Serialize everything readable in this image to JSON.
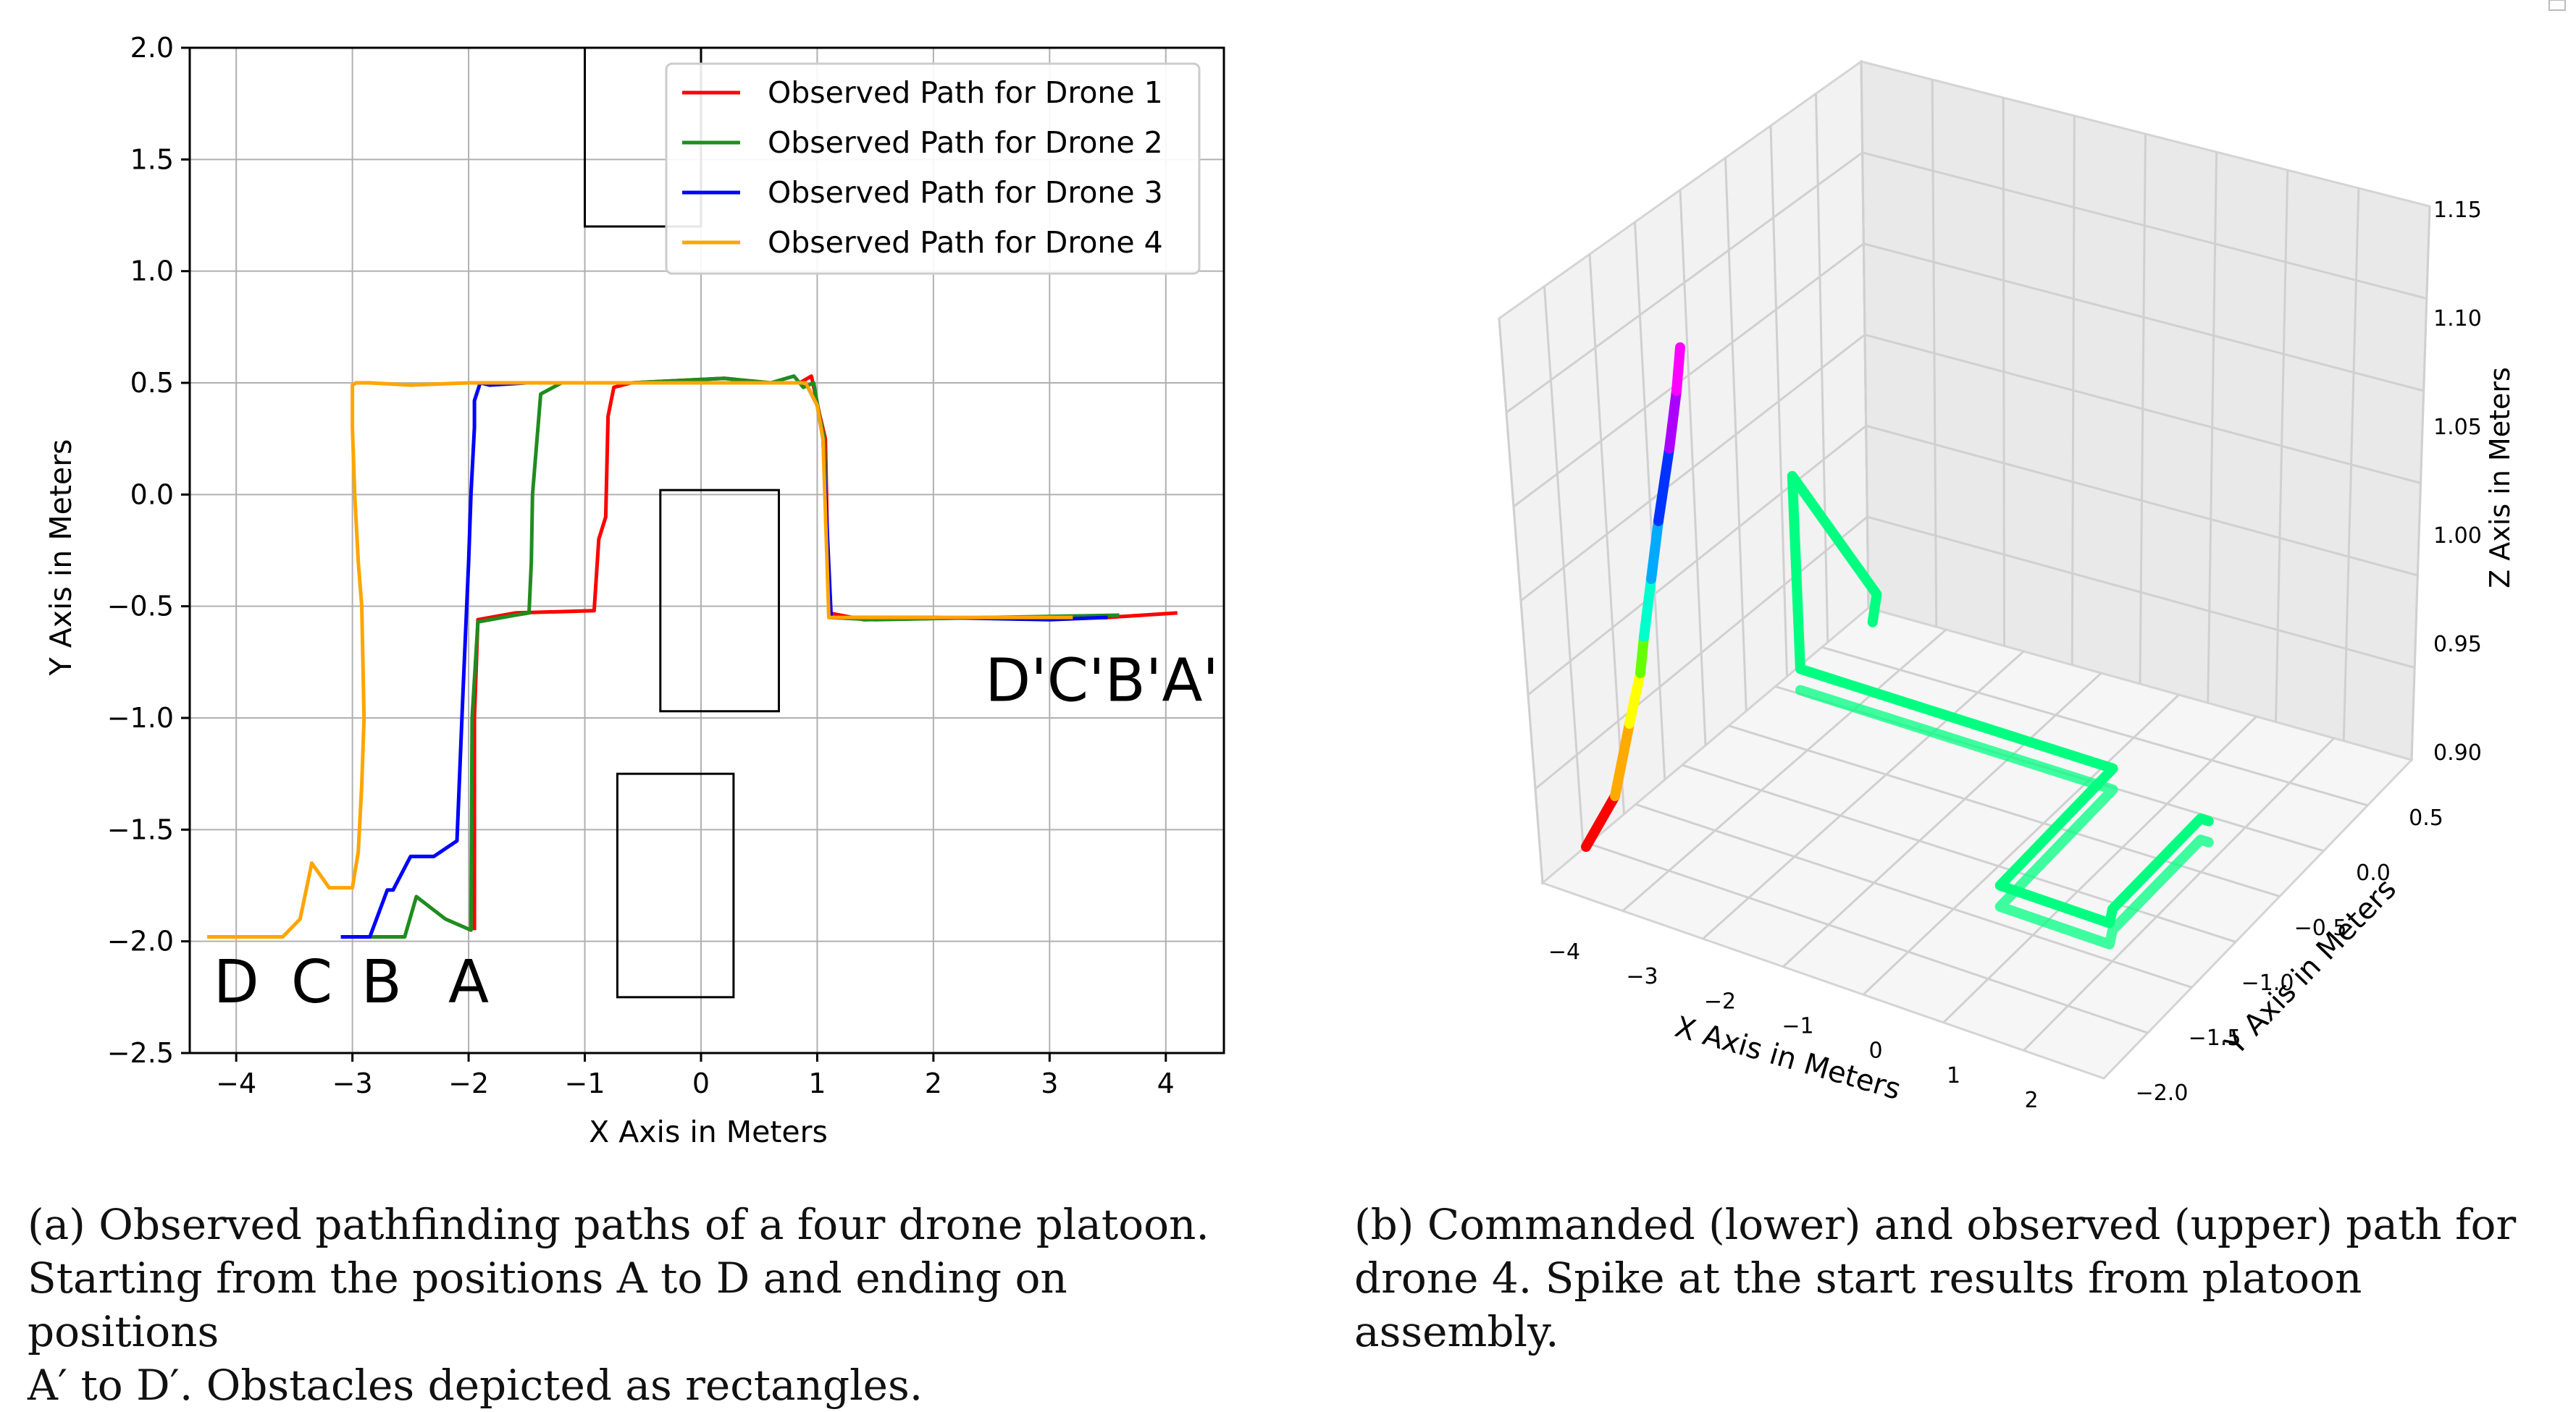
{
  "figure_a": {
    "caption": [
      "(a)  Observed pathfinding paths of a four drone platoon.",
      "Starting from the positions A to D and ending on positions",
      "A′ to D′. Obstacles depicted as rectangles."
    ],
    "chart_data": {
      "type": "line",
      "xlabel": "X Axis in Meters",
      "ylabel": "Y Axis in Meters",
      "xlim": [
        -4.4,
        4.5
      ],
      "ylim": [
        -2.5,
        2.0
      ],
      "xticks": [
        -4,
        -3,
        -2,
        -1,
        0,
        1,
        2,
        3,
        4
      ],
      "yticks": [
        2.0,
        1.5,
        1.0,
        0.5,
        0.0,
        -0.5,
        -1.0,
        -1.5,
        -2.0,
        -2.5
      ],
      "xtick_labels": [
        "−4",
        "−3",
        "−2",
        "−1",
        "0",
        "1",
        "2",
        "3",
        "4"
      ],
      "ytick_labels": [
        "2.0",
        "1.5",
        "1.0",
        "0.5",
        "0.0",
        "−0.5",
        "−1.0",
        "−1.5",
        "−2.0",
        "−2.5"
      ],
      "grid": true,
      "legend_position": "top-right",
      "series": [
        {
          "name": "Observed Path for Drone 1",
          "color": "#ff0000",
          "x": [
            -1.95,
            -1.95,
            -1.92,
            -1.6,
            -0.92,
            -0.88,
            -0.82,
            -0.8,
            -0.75,
            -0.6,
            -0.2,
            0.2,
            0.6,
            0.85,
            0.95,
            1.02,
            1.07,
            1.1,
            1.4,
            2.5,
            3.5,
            4.1
          ],
          "y": [
            -1.95,
            -1.0,
            -0.56,
            -0.53,
            -0.52,
            -0.2,
            -0.1,
            0.35,
            0.48,
            0.5,
            0.51,
            0.52,
            0.5,
            0.5,
            0.53,
            0.36,
            0.25,
            -0.53,
            -0.56,
            -0.55,
            -0.55,
            -0.53
          ]
        },
        {
          "name": "Observed Path for Drone 2",
          "color": "#1f8c1f",
          "x": [
            -2.85,
            -2.55,
            -2.45,
            -2.2,
            -1.98,
            -1.97,
            -1.92,
            -1.6,
            -1.48,
            -1.46,
            -1.45,
            -1.38,
            -1.2,
            -0.6,
            0.2,
            0.6,
            0.8,
            0.88,
            0.97,
            1.02,
            1.06,
            1.1,
            1.5,
            2.5,
            3.6
          ],
          "y": [
            -1.98,
            -1.98,
            -1.8,
            -1.9,
            -1.95,
            -1.0,
            -0.57,
            -0.54,
            -0.53,
            -0.3,
            0.0,
            0.45,
            0.5,
            0.5,
            0.52,
            0.5,
            0.53,
            0.48,
            0.5,
            0.35,
            0.25,
            -0.55,
            -0.56,
            -0.55,
            -0.54
          ]
        },
        {
          "name": "Observed Path for Drone 3",
          "color": "#0000ff",
          "x": [
            -3.1,
            -2.85,
            -2.7,
            -2.65,
            -2.5,
            -2.3,
            -2.1,
            -2.05,
            -2.0,
            -1.98,
            -1.95,
            -1.95,
            -1.9,
            -1.82,
            -1.5,
            -0.5,
            0.5,
            0.9,
            1.0,
            1.05,
            1.12,
            2.0,
            3.0,
            3.5
          ],
          "y": [
            -1.98,
            -1.98,
            -1.77,
            -1.77,
            -1.62,
            -1.62,
            -1.55,
            -0.9,
            -0.3,
            0.0,
            0.3,
            0.42,
            0.5,
            0.49,
            0.5,
            0.5,
            0.5,
            0.5,
            0.4,
            0.25,
            -0.55,
            -0.55,
            -0.56,
            -0.55
          ]
        },
        {
          "name": "Observed Path for Drone 4",
          "color": "#ffa500",
          "x": [
            -4.25,
            -3.6,
            -3.45,
            -3.35,
            -3.2,
            -3.0,
            -2.95,
            -2.92,
            -2.9,
            -2.92,
            -2.95,
            -2.98,
            -3.0,
            -3.0,
            -3.0,
            -2.97,
            -2.85,
            -2.5,
            -2.0,
            -1.0,
            0.0,
            0.9,
            1.0,
            1.05,
            1.1,
            1.5,
            2.5,
            3.2
          ],
          "y": [
            -1.98,
            -1.98,
            -1.9,
            -1.65,
            -1.76,
            -1.76,
            -1.6,
            -1.3,
            -1.0,
            -0.5,
            -0.3,
            0.0,
            0.3,
            0.45,
            0.49,
            0.5,
            0.5,
            0.49,
            0.5,
            0.5,
            0.5,
            0.5,
            0.4,
            0.25,
            -0.55,
            -0.55,
            -0.55,
            -0.55
          ]
        }
      ],
      "obstacles": [
        {
          "x0": -1.0,
          "x1": 0.0,
          "y0": 1.2,
          "y1": 2.0
        },
        {
          "x0": -0.35,
          "x1": 0.67,
          "y0": -0.97,
          "y1": 0.02
        },
        {
          "x0": -0.72,
          "x1": 0.28,
          "y0": -2.25,
          "y1": -1.25
        }
      ],
      "annotations": [
        {
          "text": "D",
          "x": -4.0,
          "y": -2.15
        },
        {
          "text": "C",
          "x": -3.35,
          "y": -2.15
        },
        {
          "text": "B",
          "x": -2.75,
          "y": -2.15
        },
        {
          "text": "A",
          "x": -2.0,
          "y": -2.15
        },
        {
          "text": "D'C'B'A'",
          "x": 3.45,
          "y": -0.8
        }
      ]
    }
  },
  "figure_b": {
    "caption": [
      "(b)  Commanded (lower) and observed (upper) path for",
      "drone 4. Spike at the start results from platoon assembly."
    ],
    "chart_data": {
      "type": "line3d",
      "xlabel": "X Axis in Meters",
      "ylabel": "Y Axis in Meters",
      "zlabel": "Z Axis in Meters",
      "xticks": [
        "−4",
        "−3",
        "−2",
        "−1",
        "0",
        "1",
        "2"
      ],
      "yticks": [
        "0.5",
        "0.0",
        "−0.5",
        "−1.0",
        "−1.5",
        "−2.0"
      ],
      "zticks": [
        "1.15",
        "1.10",
        "1.05",
        "1.00",
        "0.95",
        "0.90"
      ],
      "series": [
        {
          "name": "Commanded path",
          "color": "#00ff80",
          "x": [
            -2.9,
            -1.5,
            1.0,
            1.05,
            2.4,
            2.3,
            2.3,
            2.4
          ],
          "y": [
            -0.55,
            -0.55,
            -0.55,
            0.5,
            0.5,
            0.4,
            -0.4,
            -0.4
          ],
          "z": [
            0.95,
            0.95,
            0.95,
            0.95,
            0.95,
            0.95,
            0.95,
            0.95
          ]
        },
        {
          "name": "Observed path",
          "color": "#00ff80",
          "x": [
            -4.1,
            -3.9,
            -3.0,
            -2.9,
            -1.5,
            1.0,
            1.05,
            2.4,
            2.3,
            2.3,
            2.4
          ],
          "y": [
            -2.0,
            -1.9,
            -0.55,
            -0.55,
            -0.55,
            -0.55,
            0.5,
            0.5,
            0.4,
            -0.4,
            -0.4
          ],
          "z": [
            0.9,
            0.92,
            1.05,
            0.96,
            0.96,
            0.96,
            0.96,
            0.96,
            0.96,
            0.96,
            0.96
          ]
        }
      ]
    }
  }
}
